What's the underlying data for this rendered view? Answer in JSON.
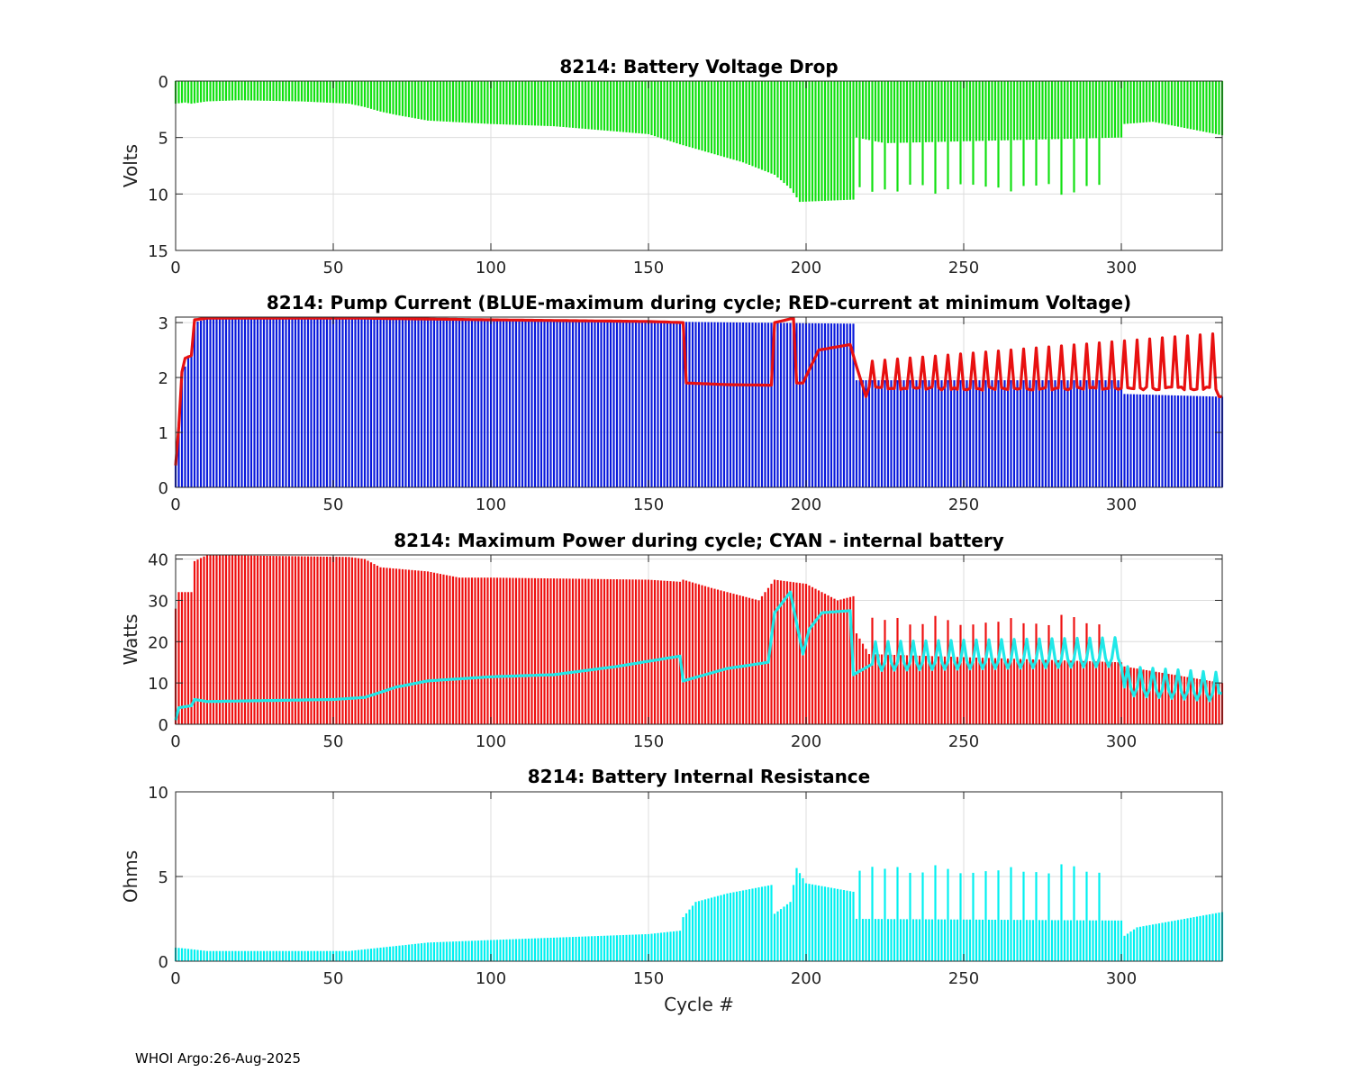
{
  "colors": {
    "voltage": "#10e010",
    "current_max": "#0a1adc",
    "current_min_voltage": "#e81010",
    "power": "#ee1010",
    "internal_power": "#20e8e8",
    "resistance": "#00f0f0"
  },
  "footer": "WHOI Argo:26-Aug-2025",
  "chart_data": [
    {
      "id": "voltage",
      "type": "bar",
      "title": "8214: Battery Voltage Drop",
      "xlabel": "",
      "ylabel": "Volts",
      "xlim": [
        0,
        332
      ],
      "ylim": [
        0,
        15
      ],
      "y_reversed": true,
      "xticks": [
        0,
        50,
        100,
        150,
        200,
        250,
        300
      ],
      "yticks": [
        0,
        5,
        10,
        15
      ],
      "grid": true,
      "series": [
        {
          "name": "Battery voltage drop",
          "color_key": "voltage",
          "x_start": 0,
          "x_end": 332,
          "anchors": [
            [
              0,
              2.0
            ],
            [
              3,
              1.9
            ],
            [
              5,
              2.0
            ],
            [
              10,
              1.8
            ],
            [
              20,
              1.7
            ],
            [
              40,
              1.8
            ],
            [
              55,
              2.0
            ],
            [
              60,
              2.3
            ],
            [
              65,
              2.7
            ],
            [
              70,
              3.0
            ],
            [
              80,
              3.5
            ],
            [
              100,
              3.8
            ],
            [
              120,
              4.0
            ],
            [
              150,
              4.7
            ],
            [
              160,
              5.6
            ],
            [
              170,
              6.4
            ],
            [
              180,
              7.2
            ],
            [
              190,
              8.3
            ],
            [
              195,
              9.5
            ],
            [
              198,
              10.7
            ],
            [
              215,
              10.5
            ],
            [
              216,
              5.0
            ],
            [
              225,
              5.5
            ],
            [
              300,
              5.0
            ],
            [
              301,
              3.8
            ],
            [
              310,
              3.6
            ],
            [
              332,
              4.8
            ]
          ],
          "spikes": {
            "start": 217,
            "end": 296,
            "step": 4,
            "value": 9.5
          },
          "note": "drop values in Volts, 0 at top"
        }
      ]
    },
    {
      "id": "current",
      "type": "bar",
      "title": "8214: Pump Current (BLUE-maximum during cycle; RED-current at minimum Voltage)",
      "xlabel": "",
      "ylabel": "",
      "xlim": [
        0,
        332
      ],
      "ylim": [
        0,
        3.1
      ],
      "xticks": [
        0,
        50,
        100,
        150,
        200,
        250,
        300
      ],
      "yticks": [
        0,
        1,
        2,
        3
      ],
      "grid": true,
      "series": [
        {
          "name": "maximum during cycle",
          "kind": "bar",
          "color_key": "current_max",
          "anchors": [
            [
              0,
              0.5
            ],
            [
              1,
              1.2
            ],
            [
              2,
              2.0
            ],
            [
              4,
              2.4
            ],
            [
              5,
              2.4
            ],
            [
              6,
              3.0
            ],
            [
              10,
              3.07
            ],
            [
              60,
              3.07
            ],
            [
              100,
              3.05
            ],
            [
              150,
              3.02
            ],
            [
              215,
              2.98
            ],
            [
              216,
              1.95
            ],
            [
              300,
              1.95
            ],
            [
              301,
              1.7
            ],
            [
              332,
              1.65
            ]
          ]
        },
        {
          "name": "current at minimum Voltage",
          "kind": "line",
          "color_key": "current_min_voltage",
          "anchors": [
            [
              0,
              0.4
            ],
            [
              1,
              1.1
            ],
            [
              2,
              2.1
            ],
            [
              3,
              2.35
            ],
            [
              5,
              2.4
            ],
            [
              6,
              3.05
            ],
            [
              10,
              3.08
            ],
            [
              60,
              3.08
            ],
            [
              100,
              3.05
            ],
            [
              150,
              3.02
            ],
            [
              161,
              3.0
            ],
            [
              162,
              1.9
            ],
            [
              175,
              1.87
            ],
            [
              189,
              1.86
            ],
            [
              190,
              3.0
            ],
            [
              196,
              3.08
            ],
            [
              197,
              1.9
            ],
            [
              199,
              1.9
            ],
            [
              204,
              2.5
            ],
            [
              214,
              2.6
            ],
            [
              216,
              2.2
            ],
            [
              219,
              1.65
            ],
            [
              221,
              2.0
            ],
            [
              300,
              1.95
            ],
            [
              301,
              1.7
            ],
            [
              332,
              1.65
            ]
          ],
          "spikes": {
            "start": 221,
            "end": 330,
            "step": 4,
            "base": 1.8,
            "peak_start": 2.3,
            "peak_end": 2.8
          }
        }
      ]
    },
    {
      "id": "power",
      "type": "bar",
      "title": "8214: Maximum Power during cycle; CYAN - internal battery",
      "xlabel": "",
      "ylabel": "Watts",
      "xlim": [
        0,
        332
      ],
      "ylim": [
        0,
        41
      ],
      "xticks": [
        0,
        50,
        100,
        150,
        200,
        250,
        300
      ],
      "yticks": [
        0,
        10,
        20,
        30,
        40
      ],
      "grid": true,
      "series": [
        {
          "name": "Maximum power",
          "kind": "bar",
          "color_key": "power",
          "anchors": [
            [
              0,
              28
            ],
            [
              1,
              32
            ],
            [
              5,
              32
            ],
            [
              6,
              39.5
            ],
            [
              10,
              41
            ],
            [
              55,
              40.5
            ],
            [
              60,
              40
            ],
            [
              65,
              38
            ],
            [
              80,
              37
            ],
            [
              90,
              35.5
            ],
            [
              100,
              35.5
            ],
            [
              150,
              35
            ],
            [
              160,
              34.5
            ],
            [
              161,
              35
            ],
            [
              170,
              33
            ],
            [
              185,
              30
            ],
            [
              190,
              35
            ],
            [
              200,
              34
            ],
            [
              210,
              30
            ],
            [
              215,
              31
            ],
            [
              216,
              22
            ],
            [
              220,
              17
            ],
            [
              300,
              15
            ],
            [
              301,
              14
            ],
            [
              332,
              10
            ]
          ],
          "spikes": {
            "start": 221,
            "end": 296,
            "step": 4,
            "value": 25
          }
        },
        {
          "name": "internal battery",
          "kind": "line",
          "color_key": "internal_power",
          "anchors": [
            [
              0,
              1
            ],
            [
              1,
              4
            ],
            [
              5,
              4.5
            ],
            [
              6,
              6
            ],
            [
              10,
              5.5
            ],
            [
              50,
              6
            ],
            [
              60,
              6.5
            ],
            [
              70,
              9
            ],
            [
              80,
              10.5
            ],
            [
              100,
              11.5
            ],
            [
              120,
              12
            ],
            [
              140,
              14
            ],
            [
              160,
              16.5
            ],
            [
              161,
              10.5
            ],
            [
              175,
              13.5
            ],
            [
              188,
              15
            ],
            [
              190,
              27
            ],
            [
              195,
              32
            ],
            [
              199,
              17
            ],
            [
              201,
              23
            ],
            [
              205,
              27
            ],
            [
              214,
              27.5
            ],
            [
              215,
              12
            ],
            [
              222,
              15
            ],
            [
              300,
              16
            ],
            [
              301,
              9
            ],
            [
              332,
              7.5
            ]
          ],
          "spikes": {
            "start": 222,
            "end": 330,
            "step": 4,
            "amp": 5
          }
        }
      ]
    },
    {
      "id": "resistance",
      "type": "bar",
      "title": "8214: Battery Internal Resistance",
      "xlabel": "Cycle #",
      "ylabel": "Ohms",
      "xlim": [
        0,
        332
      ],
      "ylim": [
        0,
        10
      ],
      "xticks": [
        0,
        50,
        100,
        150,
        200,
        250,
        300
      ],
      "yticks": [
        0,
        5,
        10
      ],
      "grid": true,
      "series": [
        {
          "name": "Internal resistance",
          "color_key": "resistance",
          "anchors": [
            [
              0,
              0.8
            ],
            [
              3,
              0.75
            ],
            [
              10,
              0.6
            ],
            [
              55,
              0.6
            ],
            [
              60,
              0.7
            ],
            [
              70,
              0.9
            ],
            [
              80,
              1.1
            ],
            [
              100,
              1.25
            ],
            [
              150,
              1.6
            ],
            [
              160,
              1.8
            ],
            [
              161,
              2.6
            ],
            [
              165,
              3.5
            ],
            [
              175,
              4.0
            ],
            [
              189,
              4.5
            ],
            [
              190,
              2.8
            ],
            [
              195,
              3.5
            ],
            [
              197,
              5.5
            ],
            [
              200,
              4.6
            ],
            [
              215,
              4.1
            ],
            [
              216,
              2.5
            ],
            [
              300,
              2.4
            ],
            [
              301,
              1.5
            ],
            [
              305,
              2.0
            ],
            [
              332,
              2.9
            ]
          ],
          "spikes": {
            "start": 217,
            "end": 296,
            "step": 4,
            "value": 5.4
          }
        }
      ]
    }
  ]
}
